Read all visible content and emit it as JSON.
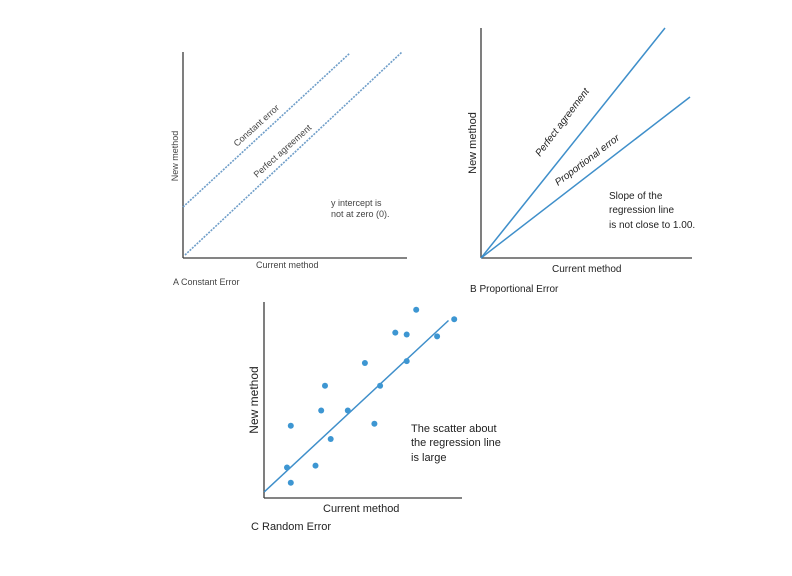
{
  "panel_a": {
    "caption": "A Constant Error",
    "x_label": "Current method",
    "y_label": "New method",
    "line_constant_label": "Constant error",
    "line_perfect_label": "Perfect agreement",
    "note_line1": "y intercept is",
    "note_line2": "not at zero (0).",
    "line_color": "#6f9ec9"
  },
  "panel_b": {
    "caption": "B Proportional Error",
    "x_label": "Current method",
    "y_label": "New method",
    "line_perfect_label": "Perfect agreement",
    "line_proportional_label": "Proportional error",
    "note_line1": "Slope of the",
    "note_line2": "regression line",
    "note_line3": "is not close to 1.00.",
    "line_color": "#3f8fca"
  },
  "panel_c": {
    "caption": "C Random Error",
    "x_label": "Current method",
    "y_label": "New method",
    "note_line1": "The scatter about",
    "note_line2": "the regression line",
    "note_line3": "is large",
    "point_color": "#3d96d2",
    "points": [
      [
        0.1,
        0.15
      ],
      [
        0.12,
        0.07
      ],
      [
        0.12,
        0.37
      ],
      [
        0.25,
        0.16
      ],
      [
        0.28,
        0.45
      ],
      [
        0.3,
        0.58
      ],
      [
        0.33,
        0.3
      ],
      [
        0.42,
        0.45
      ],
      [
        0.51,
        0.7
      ],
      [
        0.56,
        0.38
      ],
      [
        0.59,
        0.58
      ],
      [
        0.67,
        0.86
      ],
      [
        0.73,
        0.85
      ],
      [
        0.73,
        0.71
      ],
      [
        0.78,
        0.98
      ],
      [
        0.89,
        0.84
      ],
      [
        0.98,
        0.93
      ]
    ],
    "regression": {
      "intercept": 0.04,
      "slope": 0.93
    }
  }
}
